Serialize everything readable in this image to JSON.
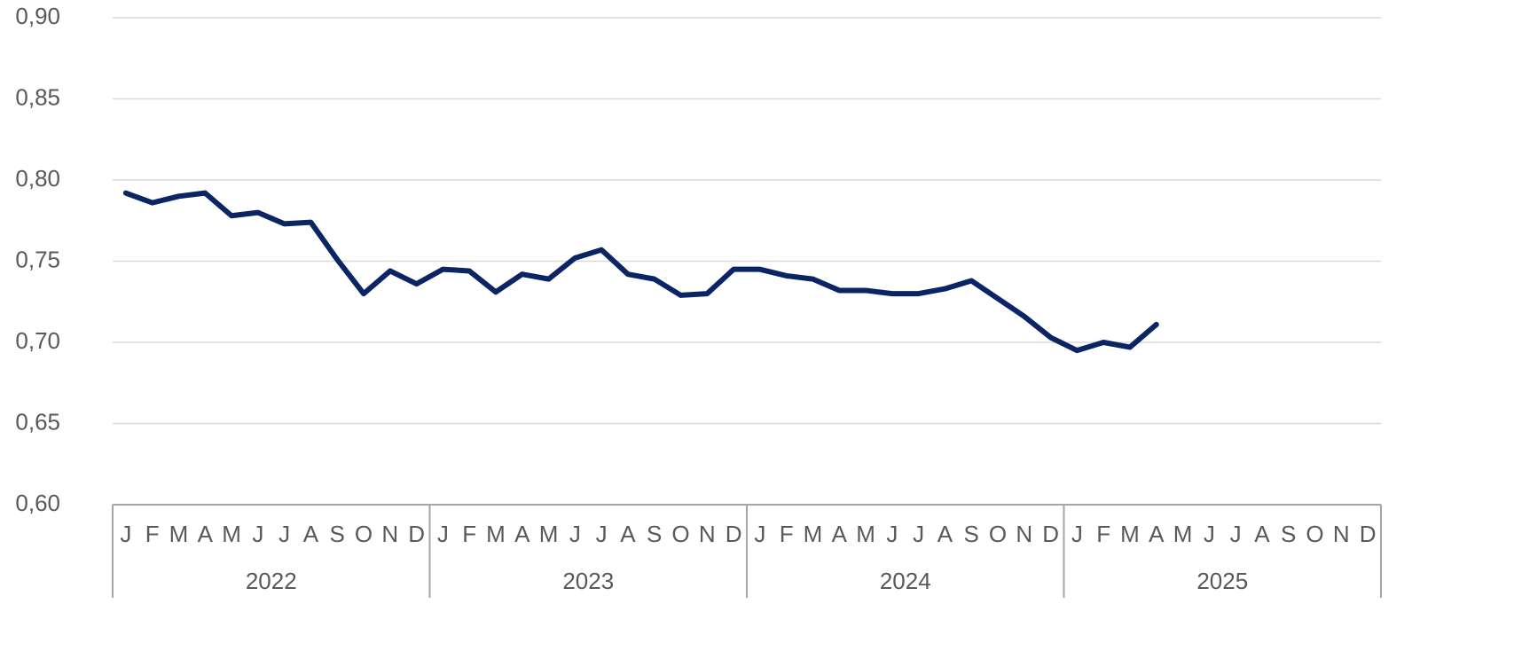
{
  "chart_data": {
    "type": "line",
    "categories": [
      "J",
      "F",
      "M",
      "A",
      "M",
      "J",
      "J",
      "A",
      "S",
      "O",
      "N",
      "D",
      "J",
      "F",
      "M",
      "A",
      "M",
      "J",
      "J",
      "A",
      "S",
      "O",
      "N",
      "D",
      "J",
      "F",
      "M",
      "A",
      "M",
      "J",
      "J",
      "A",
      "S",
      "O",
      "N",
      "D",
      "J",
      "F",
      "M",
      "A",
      "M",
      "J",
      "J",
      "A",
      "S",
      "O",
      "N",
      "D"
    ],
    "years": [
      "2022",
      "2023",
      "2024",
      "2025"
    ],
    "series": [
      {
        "color": "#0b2463",
        "values": [
          0.792,
          0.786,
          0.79,
          0.792,
          0.778,
          0.78,
          0.773,
          0.774,
          0.751,
          0.73,
          0.744,
          0.736,
          0.745,
          0.744,
          0.731,
          0.742,
          0.739,
          0.752,
          0.757,
          0.742,
          0.739,
          0.729,
          0.73,
          0.745,
          0.745,
          0.741,
          0.739,
          0.732,
          0.732,
          0.73,
          0.73,
          0.733,
          0.738,
          0.727,
          0.716,
          0.703,
          0.695,
          0.7,
          0.697,
          0.711,
          null,
          null,
          null,
          null,
          null,
          null,
          null,
          null
        ]
      }
    ],
    "ylim": [
      0.6,
      0.9
    ],
    "yticks": [
      {
        "value": 0.6,
        "label": "0,60"
      },
      {
        "value": 0.65,
        "label": "0,65"
      },
      {
        "value": 0.7,
        "label": "0,70"
      },
      {
        "value": 0.75,
        "label": "0,75"
      },
      {
        "value": 0.8,
        "label": "0,80"
      },
      {
        "value": 0.85,
        "label": "0,85"
      },
      {
        "value": 0.9,
        "label": "0,90"
      }
    ],
    "grid": true
  }
}
